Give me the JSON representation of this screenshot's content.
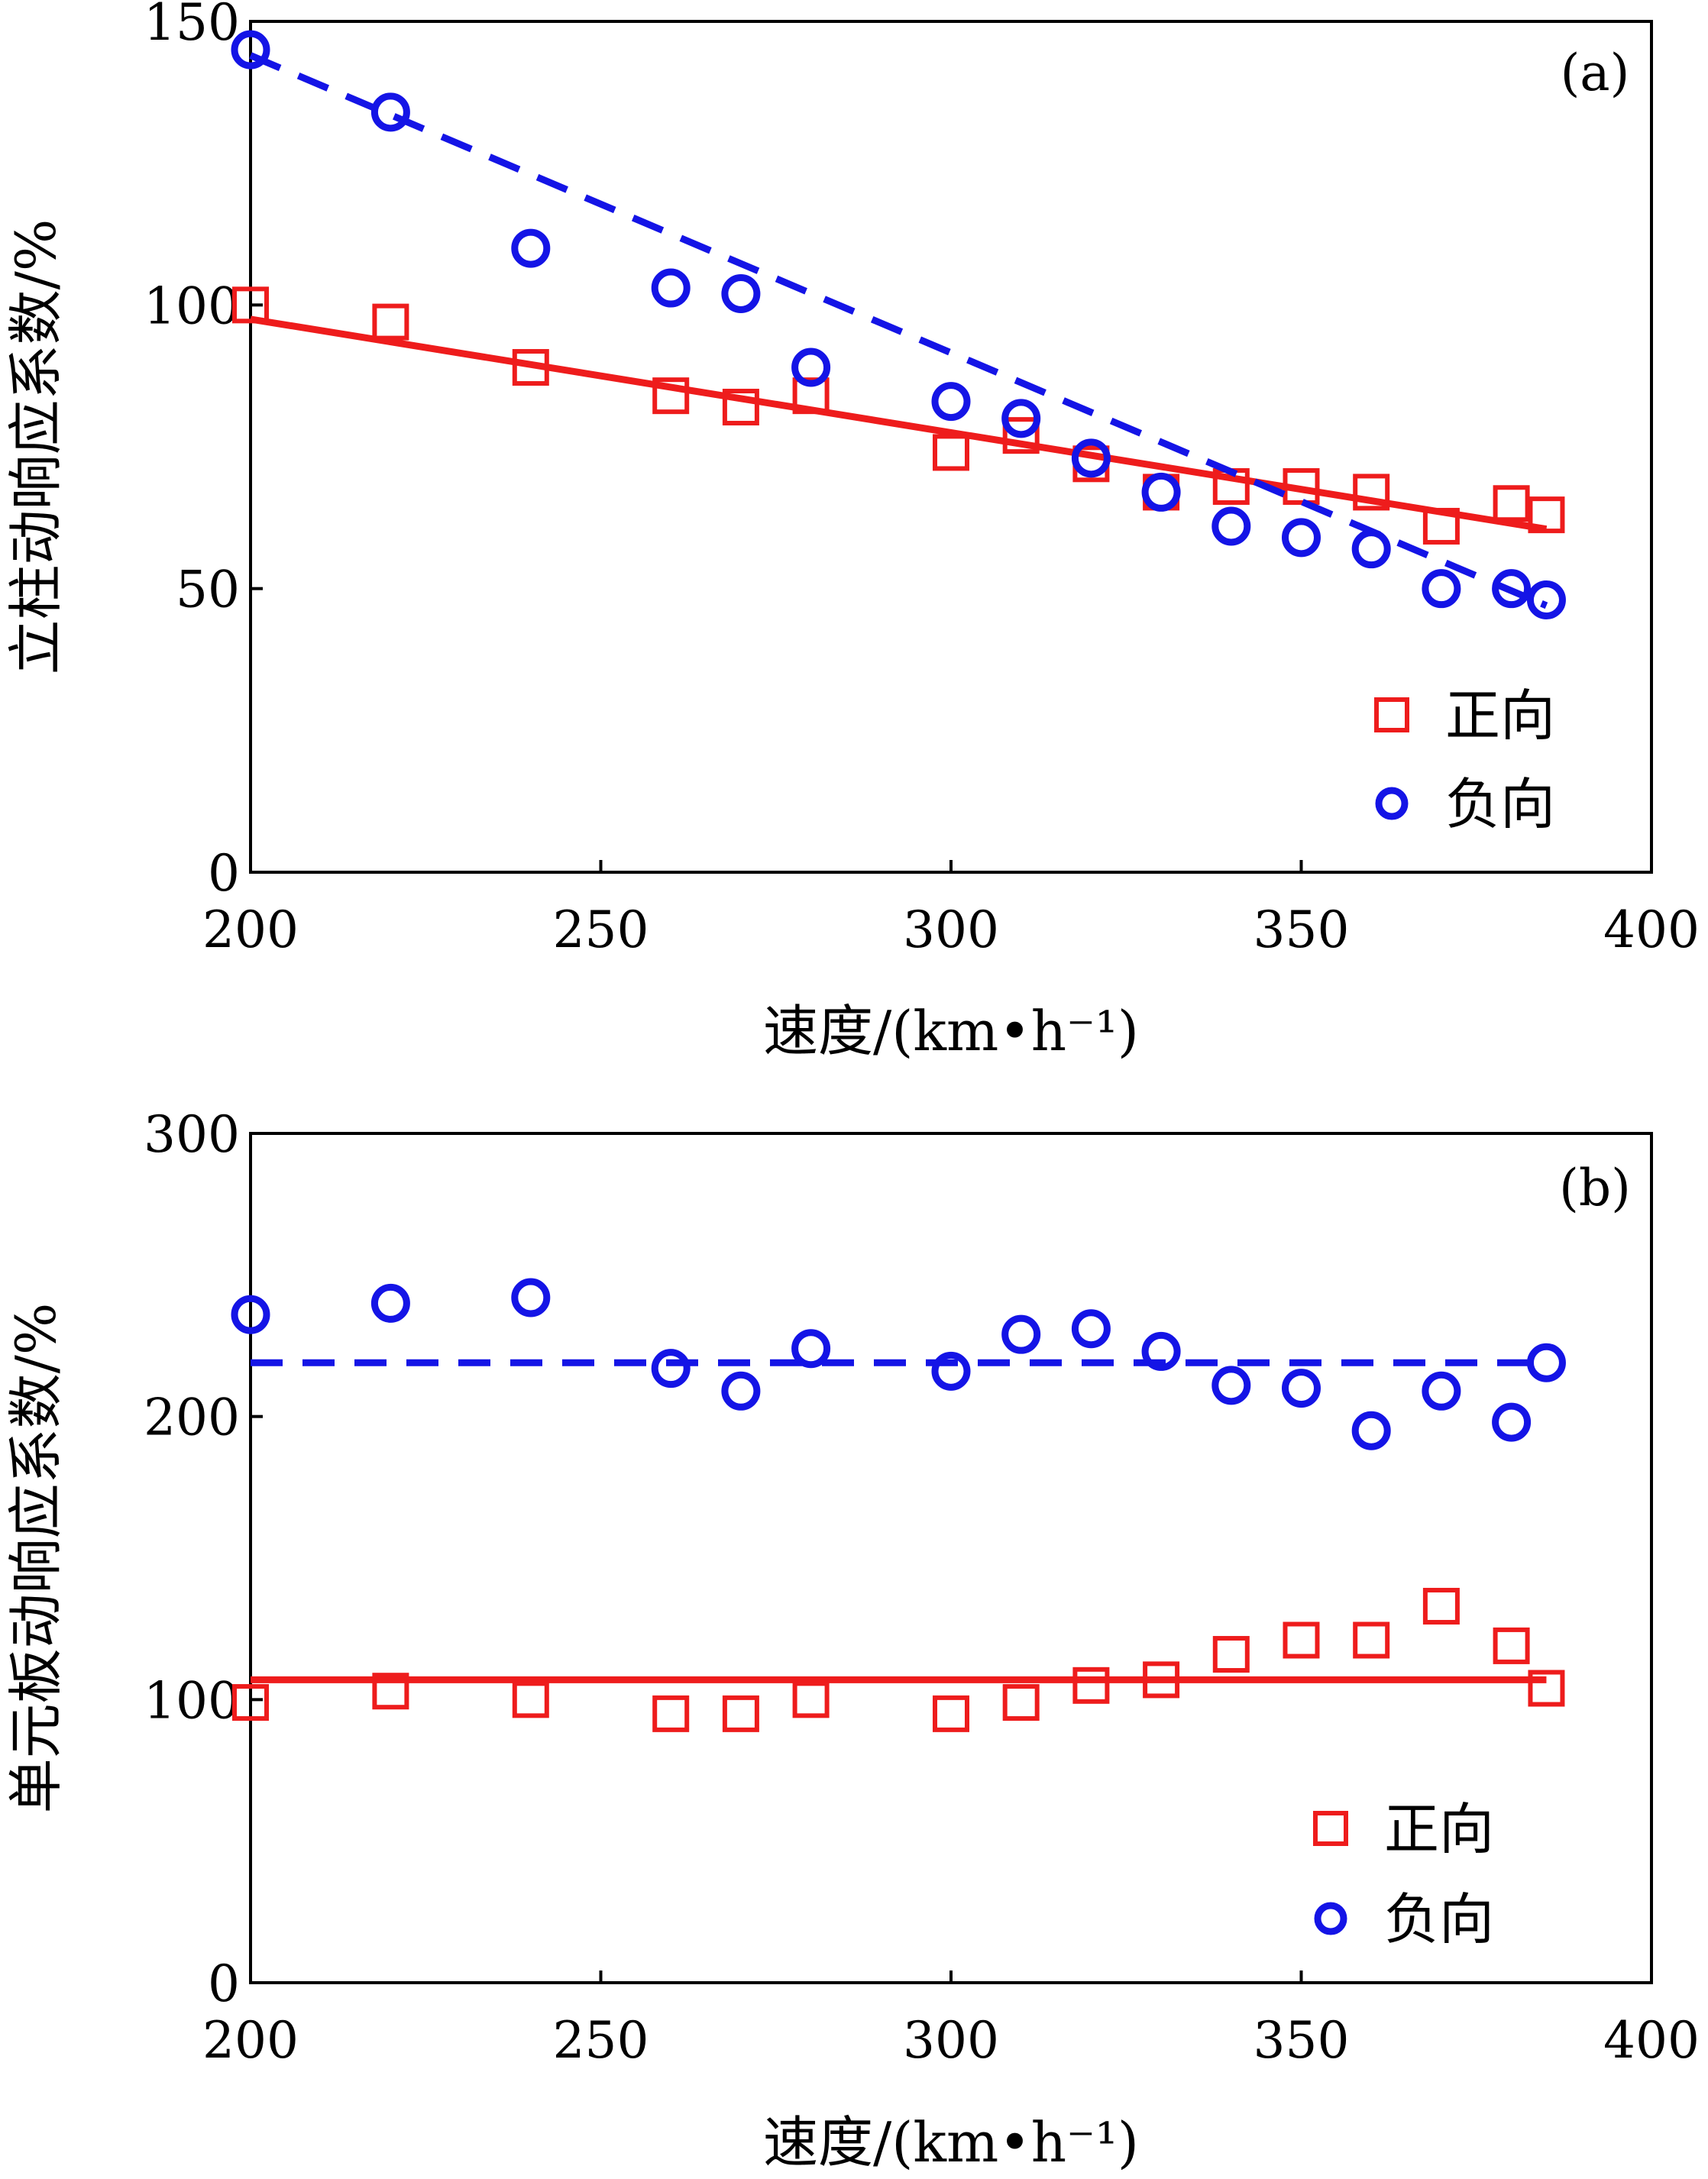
{
  "colors": {
    "forward": "#ee1c1c",
    "negative": "#1414e6",
    "axis": "#000000"
  },
  "chart_data": [
    {
      "type": "scatter",
      "panel_label": "(a)",
      "xlabel": "速度/(km•h⁻¹)",
      "ylabel": "立柱动响应系数/%",
      "xlim": [
        200,
        400
      ],
      "ylim": [
        0,
        150
      ],
      "xticks": [
        200,
        250,
        300,
        350,
        400
      ],
      "yticks": [
        0,
        50,
        100,
        150
      ],
      "legend": {
        "placement": "bottom-right"
      },
      "series": [
        {
          "name": "正向",
          "marker": "square",
          "fit": "solid",
          "x": [
            200,
            220,
            240,
            260,
            270,
            280,
            300,
            310,
            320,
            330,
            340,
            350,
            360,
            370,
            380,
            385
          ],
          "y": [
            100,
            97,
            89,
            84,
            82,
            84,
            74,
            77,
            72,
            67,
            68,
            68,
            67,
            61,
            65,
            63
          ],
          "fit_line": {
            "x": [
              200,
              385
            ],
            "y": [
              97.5,
              60.5
            ]
          }
        },
        {
          "name": "负向",
          "marker": "circle",
          "fit": "dashed",
          "x": [
            200,
            220,
            240,
            260,
            270,
            280,
            300,
            310,
            320,
            330,
            340,
            350,
            360,
            370,
            380,
            385
          ],
          "y": [
            145,
            134,
            110,
            103,
            102,
            89,
            83,
            80,
            73,
            67,
            61,
            59,
            57,
            50,
            50,
            48
          ],
          "fit_line": {
            "x": [
              200,
              385
            ],
            "y": [
              144,
              47
            ]
          }
        }
      ]
    },
    {
      "type": "scatter",
      "panel_label": "(b)",
      "xlabel": "速度/(km•h⁻¹)",
      "ylabel": "单元板动响应系数/%",
      "xlim": [
        200,
        400
      ],
      "ylim": [
        0,
        300
      ],
      "xticks": [
        200,
        250,
        300,
        350,
        400
      ],
      "yticks": [
        0,
        100,
        200,
        300
      ],
      "legend": {
        "placement": "bottom-right"
      },
      "series": [
        {
          "name": "正向",
          "marker": "square",
          "fit": "solid",
          "x": [
            200,
            220,
            240,
            260,
            270,
            280,
            300,
            310,
            320,
            330,
            340,
            350,
            360,
            370,
            380,
            385
          ],
          "y": [
            99,
            103,
            100,
            95,
            95,
            100,
            95,
            99,
            105,
            107,
            116,
            121,
            121,
            133,
            119,
            104
          ],
          "fit_line": {
            "x": [
              200,
              385
            ],
            "y": [
              107,
              107
            ]
          }
        },
        {
          "name": "负向",
          "marker": "circle",
          "fit": "dashed",
          "x": [
            200,
            220,
            240,
            260,
            270,
            280,
            300,
            310,
            320,
            330,
            340,
            350,
            360,
            370,
            380,
            385
          ],
          "y": [
            236,
            240,
            242,
            217,
            209,
            224,
            216,
            229,
            231,
            223,
            211,
            210,
            195,
            209,
            198,
            219
          ],
          "fit_line": {
            "x": [
              200,
              385
            ],
            "y": [
              219,
              219
            ]
          }
        }
      ]
    }
  ]
}
